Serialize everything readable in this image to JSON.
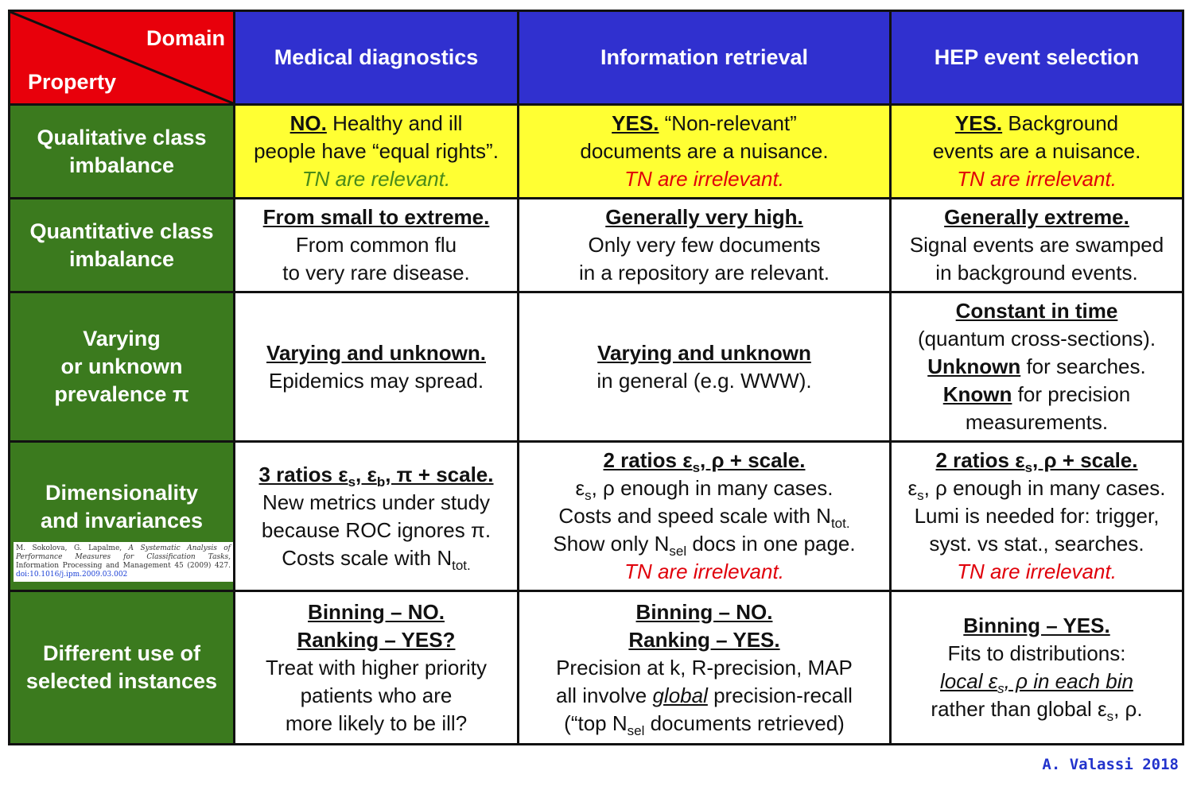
{
  "header": {
    "corner_top": "Domain",
    "corner_bottom": "Property",
    "columns": [
      "Medical diagnostics",
      "Information retrieval",
      "HEP event selection"
    ]
  },
  "rows": [
    {
      "label": [
        "Qualitative class",
        "imbalance"
      ],
      "medical": {
        "head": "NO.",
        "after_head": " Healthy and ill",
        "line2": "people have “equal rights”.",
        "note": "TN are relevant."
      },
      "ir": {
        "head": "YES.",
        "after_head": " “Non-relevant”",
        "line2": "documents are a nuisance.",
        "note": "TN are irrelevant."
      },
      "hep": {
        "head": "YES.",
        "after_head": " Background",
        "line2": "events are a nuisance.",
        "note": "TN are irrelevant."
      }
    },
    {
      "label": [
        "Quantitative class",
        "imbalance"
      ],
      "medical": {
        "head": "From small to extreme.",
        "line2": "From common flu",
        "line3": "to very rare disease."
      },
      "ir": {
        "head": "Generally very high.",
        "line2": "Only very few documents",
        "line3": "in a repository are relevant."
      },
      "hep": {
        "head": "Generally extreme.",
        "line2": "Signal events are swamped",
        "line3": "in background events."
      }
    },
    {
      "label": [
        "Varying",
        "or unknown",
        "prevalence π"
      ],
      "medical": {
        "head": "Varying and unknown.",
        "line2": "Epidemics may spread."
      },
      "ir": {
        "head": "Varying and unknown",
        "line2": "in general (e.g. WWW)."
      },
      "hep": {
        "head": "Constant in time",
        "line2": "(quantum cross-sections).",
        "unknown": "Unknown",
        "unknown_rest": " for searches.",
        "known": "Known",
        "known_rest": " for precision",
        "line5": "measurements."
      }
    },
    {
      "label": [
        "Dimensionality",
        "and invariances"
      ],
      "citation": {
        "authors": "M. Sokolova, G. Lapalme,",
        "title": "A Systematic Analysis of Performance Measures for Classification Tasks,",
        "journal": "Information Processing and Management 45 (2009) 427.",
        "doi": "doi:10.1016/j.ipm.2009.03.002"
      },
      "medical": {
        "h1": "3 ratios ε",
        "s": "s",
        "h2": ", ε",
        "b": "b",
        "h3": ", π + scale.",
        "line2": "New metrics under study",
        "line3": "because ROC ignores π.",
        "line4": "Costs scale with N",
        "tot": "tot."
      },
      "ir": {
        "h1": "2 ratios ε",
        "s": "s",
        "h2": ", ρ + scale.",
        "l2a": "ε",
        "l2s": "s",
        "l2b": ", ρ enough in many cases.",
        "line3": "Costs and speed scale with N",
        "tot": "tot.",
        "l4a": "Show only N",
        "sel": "sel",
        "l4b": " docs in one page.",
        "note": "TN are irrelevant."
      },
      "hep": {
        "h1": "2 ratios ε",
        "s": "s",
        "h2": ", ρ + scale.",
        "l2a": "ε",
        "l2s": "s",
        "l2b": ", ρ enough in many cases.",
        "line3": "Lumi is needed for: trigger,",
        "line4": "syst. vs stat., searches.",
        "note": "TN are irrelevant."
      }
    },
    {
      "label": [
        "Different use of",
        "selected instances"
      ],
      "medical": {
        "head1": "Binning – NO.",
        "head2": "Ranking – YES?",
        "line3": "Treat with higher priority",
        "line4": "patients who are",
        "line5": "more likely to be ill?"
      },
      "ir": {
        "head1": "Binning – NO.",
        "head2": "Ranking – YES.",
        "line3": "Precision at k, R-precision, MAP",
        "l4a": "all involve ",
        "l4global": "global",
        "l4b": " precision-recall",
        "l5a": "(“top N",
        "sel": "sel",
        "l5b": " documents retrieved)"
      },
      "hep": {
        "head1": "Binning – YES.",
        "line2": "Fits to distributions:",
        "l3a": "local ε",
        "s": "s",
        "l3b": ", ρ in each bin",
        "l4a": "rather than global ε",
        "l4b": ", ρ."
      }
    }
  ],
  "credit": "A. Valassi 2018",
  "colors": {
    "corner": "#e8000b",
    "column_header": "#3030cf",
    "row_header": "#3b7a1e",
    "highlight": "#ffff33",
    "green_note": "#4a8a1a",
    "red_note": "#e0000a"
  }
}
